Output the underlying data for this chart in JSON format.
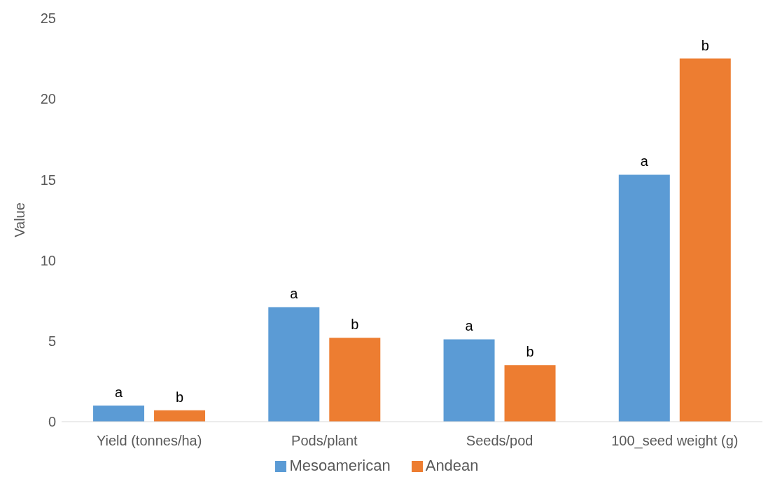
{
  "chart_data": {
    "type": "bar",
    "ylabel": "Value",
    "categories": [
      "Yield (tonnes/ha)",
      "Pods/plant",
      "Seeds/pod",
      "100_seed weight (g)"
    ],
    "series": [
      {
        "name": "Mesoamerican",
        "color": "#5b9bd5",
        "values": [
          1.0,
          7.1,
          5.1,
          15.3
        ],
        "value_labels": [
          "a",
          "a",
          "a",
          "a"
        ]
      },
      {
        "name": "Andean",
        "color": "#ed7d31",
        "values": [
          0.7,
          5.2,
          3.5,
          22.5
        ],
        "value_labels": [
          "b",
          "b",
          "b",
          "b"
        ]
      }
    ],
    "ylim": [
      0,
      25
    ],
    "yticks": [
      0,
      5,
      10,
      15,
      20,
      25
    ],
    "grid": false,
    "legend": "bottom"
  }
}
